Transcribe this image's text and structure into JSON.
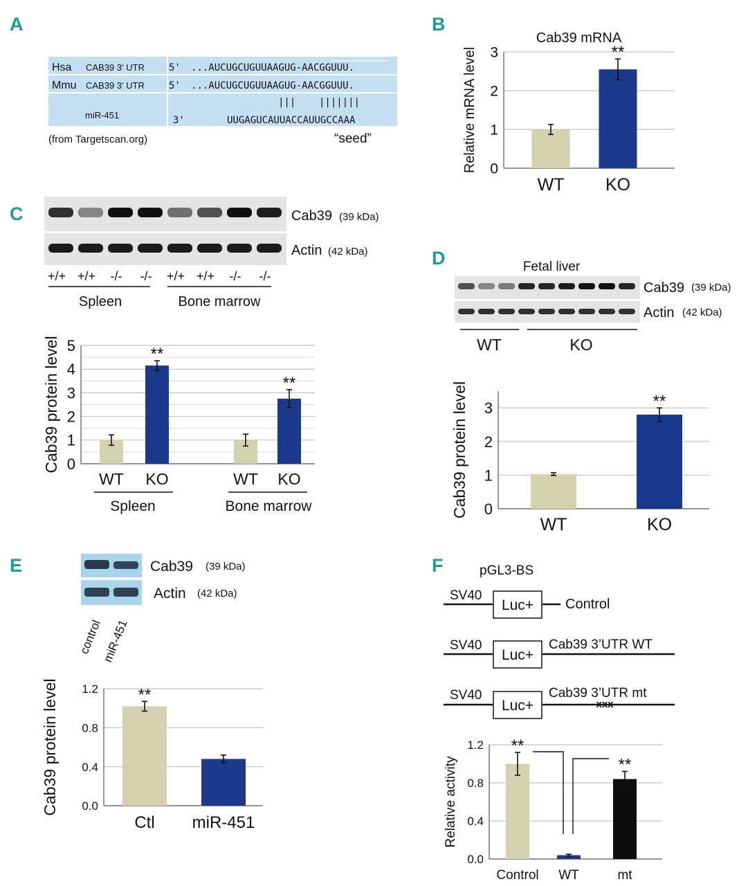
{
  "colors": {
    "wt": "#d3d2ae",
    "ko": "#1b3a8c",
    "mt": "#0d0d0d",
    "accent": "#1a9c9a",
    "highlight": "#c5dff2",
    "grid": "#b7b7b7",
    "mutation": "#e03030",
    "mir_label": "#2a4fc0"
  },
  "panelA": {
    "letter": "A",
    "row1_species": "Hsa",
    "row1_gene": "CAB39 3' UTR",
    "row1_end": "5'",
    "row1_seq": "...AUCUGCUGUUAAGUG-AACGGUUU.",
    "row2_species": "Mmu",
    "row2_gene": "CAB39 3' UTR",
    "row2_end": "5'",
    "row2_seq": "...AUCUGCUGUUAAGUG-AACGGUUU.",
    "pairing": "|||    |||||||",
    "mir_label": "miR-451",
    "mir_end": "3'",
    "mir_seq": "UUGAGUCAUUACCAUUGCCAAA",
    "source": "(from Targetscan.org)",
    "seed_label": "“seed”"
  },
  "panelC": {
    "letter": "C",
    "blot_label1": "Cab39",
    "blot_label1_kda": "(39 kDa)",
    "blot_label2": "Actin",
    "blot_label2_kda": "(42 kDa)",
    "genotypes": [
      "+/+",
      "+/+",
      "-/-",
      "-/-",
      "+/+",
      "+/+",
      "-/-",
      "-/-"
    ],
    "group1": "Spleen",
    "group2": "Bone marrow"
  },
  "panelD": {
    "letter": "D",
    "title": "Fetal liver",
    "blot_label1": "Cab39",
    "blot_label1_kda": "(39 kDa)",
    "blot_label2": "Actin",
    "blot_label2_kda": "(42 kDa)",
    "group1": "WT",
    "group2": "KO"
  },
  "panelE": {
    "letter": "E",
    "blot_label1": "Cab39",
    "blot_label1_kda": "(39 kDa)",
    "blot_label2": "Actin",
    "blot_label2_kda": "(42 kDa)",
    "lanes": [
      "control",
      "miR-451"
    ]
  },
  "panelF": {
    "letter": "F",
    "title": "pGL3-BS",
    "promoter": "SV40",
    "reporter": "Luc+",
    "construct1": "Control",
    "construct2": "Cab39 3’UTR WT",
    "construct3": "Cab39 3’UTR mt",
    "mutation_mark": "xxx"
  },
  "chart_data": [
    {
      "id": "B",
      "type": "bar",
      "panel": "B",
      "title": "Cab39 mRNA",
      "ylabel": "Relative mRNA level",
      "categories": [
        "WT",
        "KO"
      ],
      "values": [
        1.0,
        2.55
      ],
      "errors": [
        0.13,
        0.27
      ],
      "ylim": [
        0,
        3
      ],
      "yticks": [
        "0",
        "1",
        "2",
        "3"
      ],
      "significance": [
        "",
        "**"
      ]
    },
    {
      "id": "C",
      "type": "bar",
      "panel": "C",
      "title": "",
      "ylabel": "Cab39 protein level",
      "groups": [
        "Spleen",
        "Bone marrow"
      ],
      "categories": [
        "WT",
        "KO",
        "WT",
        "KO"
      ],
      "values": [
        1.0,
        4.15,
        1.0,
        2.75
      ],
      "errors": [
        0.22,
        0.2,
        0.25,
        0.38
      ],
      "ylim": [
        0,
        5
      ],
      "yticks": [
        "0",
        "1",
        "2",
        "3",
        "4",
        "5"
      ],
      "significance": [
        "",
        "**",
        "",
        "**"
      ]
    },
    {
      "id": "D",
      "type": "bar",
      "panel": "D",
      "title": "",
      "ylabel": "Cab39 protein level",
      "categories": [
        "WT",
        "KO"
      ],
      "values": [
        1.03,
        2.8
      ],
      "errors": [
        0.04,
        0.2
      ],
      "ylim": [
        0,
        3.5
      ],
      "yticks": [
        "0",
        "1",
        "2",
        "3"
      ],
      "significance": [
        "",
        "**"
      ]
    },
    {
      "id": "E",
      "type": "bar",
      "panel": "E",
      "title": "",
      "ylabel": "Cab39 protein level",
      "categories": [
        "Ctl",
        "miR-451"
      ],
      "values": [
        1.02,
        0.48
      ],
      "errors": [
        0.05,
        0.04
      ],
      "ylim": [
        0,
        1.2
      ],
      "yticks": [
        "0.0",
        "0.4",
        "0.8",
        "1.2"
      ],
      "significance": [
        "**",
        ""
      ]
    },
    {
      "id": "F",
      "type": "bar",
      "panel": "F",
      "title": "",
      "ylabel": "Relative activity",
      "categories": [
        "Control",
        "WT",
        "mt"
      ],
      "values": [
        1.0,
        0.04,
        0.84
      ],
      "errors": [
        0.12,
        0.01,
        0.08
      ],
      "ylim": [
        0,
        1.2
      ],
      "yticks": [
        "0.0",
        "0.4",
        "0.8",
        "1.2"
      ],
      "significance": [
        "**",
        "",
        "**"
      ]
    }
  ]
}
